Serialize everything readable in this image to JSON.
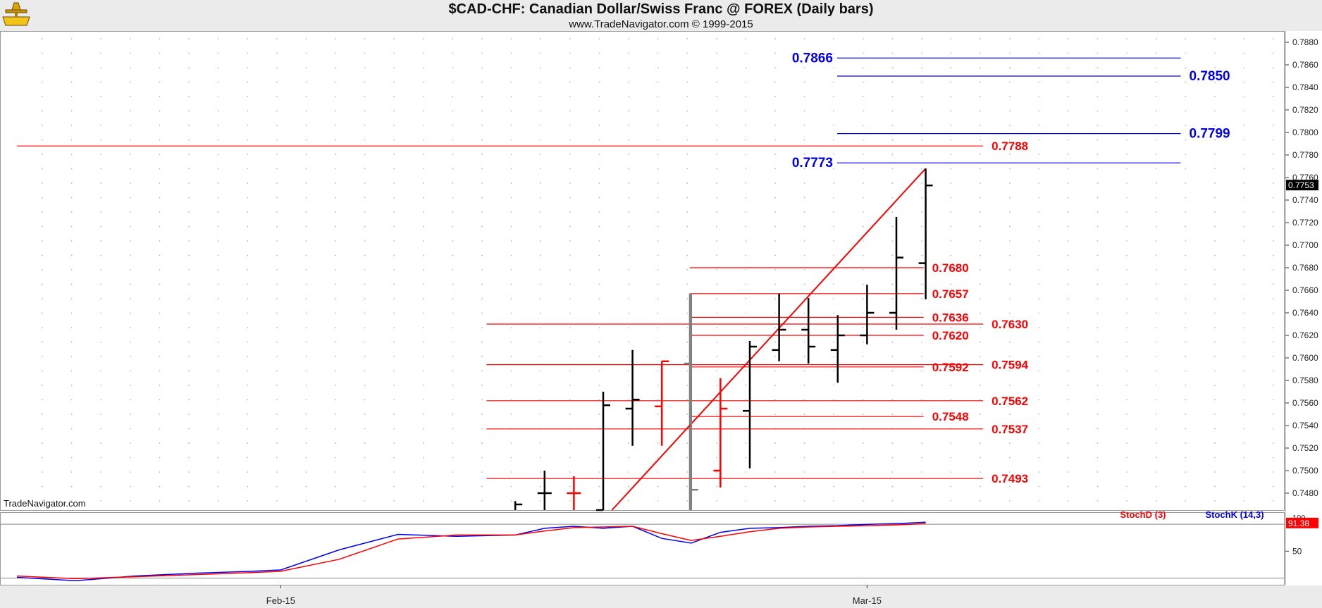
{
  "header": {
    "title": "$CAD-CHF:  Canadian Dollar/Swiss Franc @ FOREX  (Daily bars)",
    "subtitle": "www.TradeNavigator.com © 1999-2015",
    "watermark": "TradeNavigator.com"
  },
  "colors": {
    "up": "#000000",
    "down": "#ff0000",
    "blue": "#0000ee",
    "red": "#ff0000"
  },
  "chart_data": [
    {
      "type": "ohlc",
      "title": "$CAD-CHF:  Canadian Dollar/Swiss Franc @ FOREX  (Daily bars)",
      "ylim": [
        0.7465,
        0.789
      ],
      "y_ticks": [
        "0.7480",
        "0.7500",
        "0.7520",
        "0.7540",
        "0.7560",
        "0.7580",
        "0.7600",
        "0.7620",
        "0.7640",
        "0.7660",
        "0.7680",
        "0.7700",
        "0.7720",
        "0.7740",
        "0.7760",
        "0.7780",
        "0.7800",
        "0.7820",
        "0.7840",
        "0.7860",
        "0.7880"
      ],
      "x_labels": [
        {
          "label": "Feb-15",
          "day": 9
        },
        {
          "label": "Mar-15",
          "day": 29
        }
      ],
      "last_price": "0.7753",
      "bars": [
        {
          "day": 17,
          "open": null,
          "high": 0.7473,
          "low": 0.7465,
          "close": 0.747,
          "color": "up"
        },
        {
          "day": 18,
          "open": 0.748,
          "high": 0.75,
          "low": 0.7465,
          "close": 0.748,
          "color": "up"
        },
        {
          "day": 19,
          "open": 0.748,
          "high": 0.7495,
          "low": 0.7465,
          "close": 0.748,
          "color": "down"
        },
        {
          "day": 20,
          "open": 0.7465,
          "high": 0.757,
          "low": 0.7465,
          "close": 0.7558,
          "color": "up"
        },
        {
          "day": 21,
          "open": 0.7555,
          "high": 0.7607,
          "low": 0.7522,
          "close": 0.7563,
          "color": "up"
        },
        {
          "day": 22,
          "open": 0.7557,
          "high": 0.7597,
          "low": 0.7522,
          "close": 0.7597,
          "color": "down"
        },
        {
          "day": 23,
          "open": 0.7595,
          "high": 0.7657,
          "low": 0.7465,
          "close": 0.7483,
          "color": "gray"
        },
        {
          "day": 24,
          "open": 0.75,
          "high": 0.7582,
          "low": 0.7485,
          "close": 0.7555,
          "color": "down"
        },
        {
          "day": 25,
          "open": 0.7553,
          "high": 0.7615,
          "low": 0.7502,
          "close": 0.761,
          "color": "up"
        },
        {
          "day": 26,
          "open": 0.7607,
          "high": 0.7657,
          "low": 0.7597,
          "close": 0.7625,
          "color": "up"
        },
        {
          "day": 27,
          "open": 0.7625,
          "high": 0.7653,
          "low": 0.7595,
          "close": 0.761,
          "color": "up"
        },
        {
          "day": 28,
          "open": 0.7607,
          "high": 0.7638,
          "low": 0.7578,
          "close": 0.762,
          "color": "up"
        },
        {
          "day": 29,
          "open": 0.762,
          "high": 0.7665,
          "low": 0.7612,
          "close": 0.764,
          "color": "up"
        },
        {
          "day": 30,
          "open": 0.764,
          "high": 0.7725,
          "low": 0.7625,
          "close": 0.7689,
          "color": "up"
        },
        {
          "day": 31,
          "open": 0.7684,
          "high": 0.7768,
          "low": 0.7652,
          "close": 0.7753,
          "color": "up"
        }
      ],
      "trendline": {
        "from": {
          "day": 20.3,
          "value": 0.7465
        },
        "to": {
          "day": 31,
          "value": 0.7768
        },
        "color": "red"
      },
      "vertical_line": {
        "day": 22.95,
        "from": 0.7465,
        "to": 0.7657,
        "color": "gray"
      },
      "levels": [
        {
          "value": 0.7866,
          "label": "0.7866",
          "color": "blue",
          "from_day": 27.98,
          "to_day": 39.7,
          "label_side": "left"
        },
        {
          "value": 0.785,
          "label": "0.7850",
          "color": "blue",
          "from_day": 27.98,
          "to_day": 39.7,
          "label_side": "right"
        },
        {
          "value": 0.7799,
          "label": "0.7799",
          "color": "blue",
          "from_day": 27.98,
          "to_day": 39.7,
          "label_side": "right"
        },
        {
          "value": 0.7773,
          "label": "0.7773",
          "color": "blue",
          "from_day": 27.98,
          "to_day": 39.7,
          "label_side": "left"
        },
        {
          "value": 0.7788,
          "label": "0.7788",
          "color": "red",
          "from_day": 0,
          "to_day": 32.96,
          "label_side": "right"
        },
        {
          "value": 0.768,
          "label": "0.7680",
          "color": "red",
          "from_day": 22.95,
          "to_day": 30.93,
          "label_side": "right"
        },
        {
          "value": 0.7657,
          "label": "0.7657",
          "color": "red",
          "from_day": 22.95,
          "to_day": 30.93,
          "label_side": "right"
        },
        {
          "value": 0.7636,
          "label": "0.7636",
          "color": "red",
          "from_day": 22.95,
          "to_day": 30.93,
          "label_side": "right"
        },
        {
          "value": 0.763,
          "label": "0.7630",
          "color": "red",
          "from_day": 16.02,
          "to_day": 32.96,
          "label_side": "right"
        },
        {
          "value": 0.762,
          "label": "0.7620",
          "color": "red",
          "from_day": 22.95,
          "to_day": 30.93,
          "label_side": "right"
        },
        {
          "value": 0.7594,
          "label": "0.7594",
          "color": "red",
          "from_day": 16.02,
          "to_day": 32.96,
          "label_side": "right"
        },
        {
          "value": 0.7592,
          "label": "0.7592",
          "color": "red",
          "from_day": 22.95,
          "to_day": 30.93,
          "label_side": "right"
        },
        {
          "value": 0.7562,
          "label": "0.7562",
          "color": "red",
          "from_day": 16.02,
          "to_day": 32.96,
          "label_side": "right"
        },
        {
          "value": 0.7548,
          "label": "0.7548",
          "color": "red",
          "from_day": 22.95,
          "to_day": 30.93,
          "label_side": "right"
        },
        {
          "value": 0.7537,
          "label": "0.7537",
          "color": "red",
          "from_day": 16.02,
          "to_day": 32.96,
          "label_side": "right"
        },
        {
          "value": 0.7493,
          "label": "0.7493",
          "color": "red",
          "from_day": 16.02,
          "to_day": 32.96,
          "label_side": "right"
        }
      ]
    },
    {
      "type": "line",
      "ylim": [
        0,
        108
      ],
      "y_ticks": [
        "50"
      ],
      "top_tick": "100",
      "legend": [
        {
          "name": "StochD (3)",
          "color": "red"
        },
        {
          "name": "StochK (14,3)",
          "color": "blue"
        }
      ],
      "last_value": "91.38",
      "series": [
        {
          "name": "StochK (14,3)",
          "color": "blue",
          "x": [
            0,
            2,
            4,
            6,
            8,
            9,
            11,
            13,
            15,
            17,
            18,
            19,
            20,
            21,
            22,
            23,
            24,
            25,
            26,
            27,
            28,
            29,
            30,
            31
          ],
          "values": [
            11,
            6,
            13,
            17,
            20,
            22,
            52,
            75,
            72,
            74,
            84,
            87,
            84,
            87,
            69,
            62,
            78,
            84,
            85,
            87,
            88,
            90,
            91,
            93
          ]
        },
        {
          "name": "StochD (3)",
          "color": "red",
          "x": [
            0,
            2,
            4,
            6,
            8,
            9,
            11,
            13,
            15,
            17,
            18,
            19,
            20,
            21,
            22,
            23,
            24,
            25,
            26,
            27,
            28,
            29,
            30,
            31
          ],
          "values": [
            13,
            9,
            12,
            15,
            18,
            20,
            38,
            68,
            74,
            74,
            80,
            85,
            86,
            87,
            76,
            66,
            72,
            79,
            84,
            86,
            87,
            88,
            89,
            91
          ]
        }
      ]
    }
  ]
}
